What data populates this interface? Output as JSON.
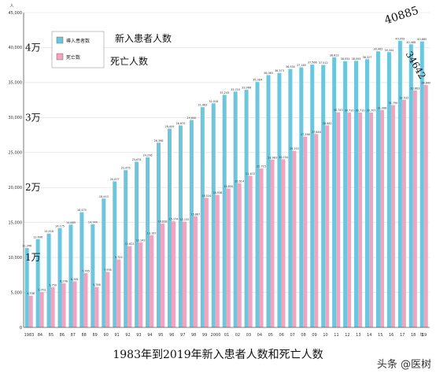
{
  "chart_data": {
    "type": "bar",
    "y_unit": "人",
    "x_unit_label": "年",
    "ylim": [
      0,
      45000
    ],
    "y_ticks": [
      "0",
      "5,000",
      "10,000",
      "15,000",
      "20,000",
      "25,000",
      "30,000",
      "35,000",
      "40,000",
      "45,000"
    ],
    "categories": [
      "1983",
      "84",
      "85",
      "86",
      "87",
      "88",
      "89",
      "90",
      "91",
      "92",
      "93",
      "94",
      "95",
      "96",
      "97",
      "98",
      "99",
      "2000",
      "01",
      "02",
      "03",
      "04",
      "05",
      "06",
      "07",
      "08",
      "09",
      "10",
      "11",
      "12",
      "13",
      "14",
      "15",
      "16",
      "17",
      "18",
      "19"
    ],
    "series": [
      {
        "name": "導入患者数",
        "color": "#6cc6dc",
        "values": [
          11346,
          12606,
          13418,
          14175,
          14689,
          16470,
          14744,
          18413,
          20877,
          22475,
          23674,
          24296,
          26398,
          28409,
          28870,
          29640,
          31483,
          32018,
          33243,
          33710,
          33966,
          35084,
          36063,
          36373,
          36934,
          37180,
          37566,
          37512,
          38613,
          38055,
          38095,
          38327,
          39462,
          39344,
          40959,
          40468,
          40885
        ],
        "labels": [
          "11,346",
          "12,606",
          "13,418",
          "14,175",
          "14,689",
          "16,470",
          "14,744",
          "18,413",
          "20,877",
          "22,475",
          "23,674",
          "24,296",
          "26,398",
          "28,409",
          "28,870",
          "29,640",
          "31,483",
          "32,018",
          "33,243",
          "33,710",
          "33,966",
          "35,084",
          "36,063",
          "36,373",
          "36,934",
          "37,180",
          "37,566",
          "37,512",
          "38,613",
          "38,055",
          "38,095",
          "38,327",
          "39,462",
          "39,344",
          "40,959",
          "40,468",
          "40,885"
        ]
      },
      {
        "name": "死亡数",
        "color": "#f2a3c0",
        "values": [
          4536,
          5053,
          5759,
          6296,
          6581,
          7765,
          5788,
          7936,
          9722,
          11621,
          12143,
          13167,
          14838,
          15174,
          15132,
          15887,
          18524,
          18938,
          19850,
          20614,
          21672,
          22715,
          23983,
          24034,
          25253,
          27266,
          27646,
          28882,
          30743,
          30710,
          30710,
          30707,
          31068,
          31790,
          32532,
          33863,
          34642
        ],
        "labels": [
          "4,536",
          "5,053",
          "5,759",
          "6,296",
          "6,581",
          "7,765",
          "5,788",
          "7,936",
          "9,722",
          "11,621",
          "12,143",
          "13,167",
          "14,838",
          "15,174",
          "15,132",
          "15,887",
          "18,524",
          "18,938",
          "19,850",
          "20,614",
          "21,672",
          "22,715",
          "23,983",
          "24,034",
          "25,253",
          "27,266",
          "27,646",
          "28,882",
          "30,743",
          "30,710",
          "30,710",
          "30,707",
          "31,068",
          "31,790",
          "32,532",
          "33,863",
          "34,642"
        ]
      }
    ],
    "legend": {
      "position": "top-left"
    }
  },
  "annotations": {
    "series1_cn": "新入患者人数",
    "series2_cn": "死亡人数",
    "y_marks": [
      {
        "text": "4万",
        "value": 40000
      },
      {
        "text": "3万",
        "value": 30000
      },
      {
        "text": "2万",
        "value": 20000
      },
      {
        "text": "1万",
        "value": 10000
      }
    ],
    "last_new": "40885",
    "last_death": "34642"
  },
  "caption": "1983年到2019年新入患者人数和死亡人数",
  "watermark": "头条 @医树"
}
